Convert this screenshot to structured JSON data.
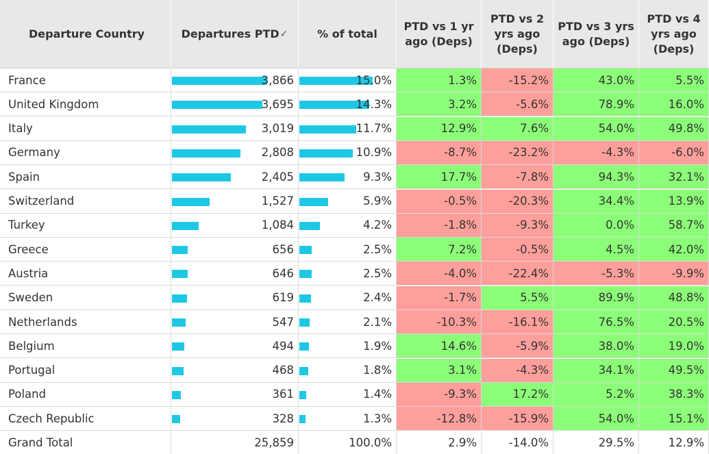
{
  "table": {
    "headers": {
      "country": "Departure Country",
      "departures": "Departures PTD",
      "pct": "% of total",
      "vs1": "PTD vs 1 yr ago (Deps)",
      "vs2": "PTD vs 2 yrs ago (Deps)",
      "vs3": "PTD vs 3 yrs ago (Deps)",
      "vs4": "PTD vs 4 yrs ago (Deps)"
    },
    "colors": {
      "bar": "#1ec8e4",
      "positive": "#8cff78",
      "negative": "#ff9f9b",
      "header_bg": "#e8e8e8"
    },
    "rows": [
      {
        "country": "France",
        "departures": "3,866",
        "pct": "15.0%",
        "vs1": "1.3%",
        "vs2": "-15.2%",
        "vs3": "43.0%",
        "vs4": "5.5%"
      },
      {
        "country": "United Kingdom",
        "departures": "3,695",
        "pct": "14.3%",
        "vs1": "3.2%",
        "vs2": "-5.6%",
        "vs3": "78.9%",
        "vs4": "16.0%"
      },
      {
        "country": "Italy",
        "departures": "3,019",
        "pct": "11.7%",
        "vs1": "12.9%",
        "vs2": "7.6%",
        "vs3": "54.0%",
        "vs4": "49.8%"
      },
      {
        "country": "Germany",
        "departures": "2,808",
        "pct": "10.9%",
        "vs1": "-8.7%",
        "vs2": "-23.2%",
        "vs3": "-4.3%",
        "vs4": "-6.0%"
      },
      {
        "country": "Spain",
        "departures": "2,405",
        "pct": "9.3%",
        "vs1": "17.7%",
        "vs2": "-7.8%",
        "vs3": "94.3%",
        "vs4": "32.1%"
      },
      {
        "country": "Switzerland",
        "departures": "1,527",
        "pct": "5.9%",
        "vs1": "-0.5%",
        "vs2": "-20.3%",
        "vs3": "34.4%",
        "vs4": "13.9%"
      },
      {
        "country": "Turkey",
        "departures": "1,084",
        "pct": "4.2%",
        "vs1": "-1.8%",
        "vs2": "-9.3%",
        "vs3": "0.0%",
        "vs4": "58.7%"
      },
      {
        "country": "Greece",
        "departures": "656",
        "pct": "2.5%",
        "vs1": "7.2%",
        "vs2": "-0.5%",
        "vs3": "4.5%",
        "vs4": "42.0%"
      },
      {
        "country": "Austria",
        "departures": "646",
        "pct": "2.5%",
        "vs1": "-4.0%",
        "vs2": "-22.4%",
        "vs3": "-5.3%",
        "vs4": "-9.9%"
      },
      {
        "country": "Sweden",
        "departures": "619",
        "pct": "2.4%",
        "vs1": "-1.7%",
        "vs2": "5.5%",
        "vs3": "89.9%",
        "vs4": "48.8%"
      },
      {
        "country": "Netherlands",
        "departures": "547",
        "pct": "2.1%",
        "vs1": "-10.3%",
        "vs2": "-16.1%",
        "vs3": "76.5%",
        "vs4": "20.5%"
      },
      {
        "country": "Belgium",
        "departures": "494",
        "pct": "1.9%",
        "vs1": "14.6%",
        "vs2": "-5.9%",
        "vs3": "38.0%",
        "vs4": "19.0%"
      },
      {
        "country": "Portugal",
        "departures": "468",
        "pct": "1.8%",
        "vs1": "3.1%",
        "vs2": "-4.3%",
        "vs3": "34.1%",
        "vs4": "49.5%"
      },
      {
        "country": "Poland",
        "departures": "361",
        "pct": "1.4%",
        "vs1": "-9.3%",
        "vs2": "17.2%",
        "vs3": "5.2%",
        "vs4": "38.3%"
      },
      {
        "country": "Czech Republic",
        "departures": "328",
        "pct": "1.3%",
        "vs1": "-12.8%",
        "vs2": "-15.9%",
        "vs3": "54.0%",
        "vs4": "15.1%"
      }
    ],
    "total": {
      "country": "Grand Total",
      "departures": "25,859",
      "pct": "100.0%",
      "vs1": "2.9%",
      "vs2": "-14.0%",
      "vs3": "29.5%",
      "vs4": "12.9%"
    }
  }
}
